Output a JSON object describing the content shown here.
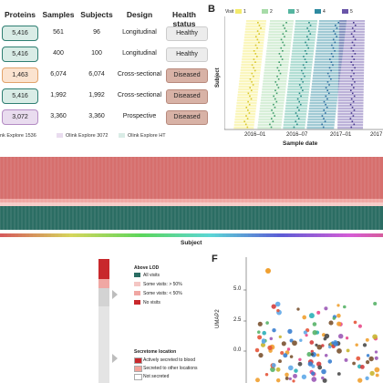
{
  "panel_a": {
    "headers": [
      "Proteins",
      "Samples",
      "Subjects",
      "Design",
      "Health status"
    ],
    "rows": [
      {
        "proteins": "5,416",
        "samples": "561",
        "subjects": "96",
        "design": "Longitudinal",
        "health": "Healthy",
        "pcolor": "#d9ece6",
        "hcolor": "#ececec"
      },
      {
        "proteins": "5,416",
        "samples": "400",
        "subjects": "100",
        "design": "Longitudinal",
        "health": "Healthy",
        "pcolor": "#d9ece6",
        "hcolor": "#ececec"
      },
      {
        "proteins": "1,463",
        "samples": "6,074",
        "subjects": "6,074",
        "design": "Cross-sectional",
        "health": "Diseased",
        "pcolor": "#fbe3cf",
        "hcolor": "#d8b2a6"
      },
      {
        "proteins": "5,416",
        "samples": "1,992",
        "subjects": "1,992",
        "design": "Cross-sectional",
        "health": "Diseased",
        "pcolor": "#d9ece6",
        "hcolor": "#d8b2a6"
      },
      {
        "proteins": "3,072",
        "samples": "3,360",
        "subjects": "3,360",
        "design": "Prospective",
        "health": "Diseased",
        "pcolor": "#e9dcef",
        "hcolor": "#d8b2a6"
      }
    ],
    "legend": [
      "nk Explore 1536",
      "Olink Explore 3072",
      "Olink Explore HT"
    ]
  },
  "panel_b": {
    "letter": "B",
    "legend_title": "Visit",
    "visits": [
      "1",
      "2",
      "3",
      "4",
      "5"
    ],
    "visit_colors": [
      "#f3ea6c",
      "#a7dba8",
      "#55b5a0",
      "#2e8aa0",
      "#6a55a8"
    ],
    "ylabel": "Subject",
    "xlabel": "Sample date",
    "xticks": [
      "2016–01",
      "2016–07",
      "2017–01",
      "2017"
    ]
  },
  "panel_c": {
    "xlabel": "Subject"
  },
  "panel_e": {
    "legend_title": "Above LOD",
    "lod_items": [
      "All visits",
      "Some visits: > 50%",
      "Some visits: < 50%",
      "No visits"
    ],
    "lod_colors": [
      "#2b6d63",
      "#f4c6c3",
      "#f0a7a3",
      "#c8282c"
    ],
    "secretome_title": "Secretome location",
    "secretome_items": [
      "Actively secreted to blood",
      "Secreted to other locations",
      "Not secreted"
    ],
    "secretome_colors": [
      "#c8282c",
      "#f3a39a",
      "#ffffff"
    ]
  },
  "panel_f": {
    "letter": "F",
    "ylabel": "UMAP2",
    "yticks": [
      "5.0",
      "2.5",
      "0.0"
    ]
  }
}
